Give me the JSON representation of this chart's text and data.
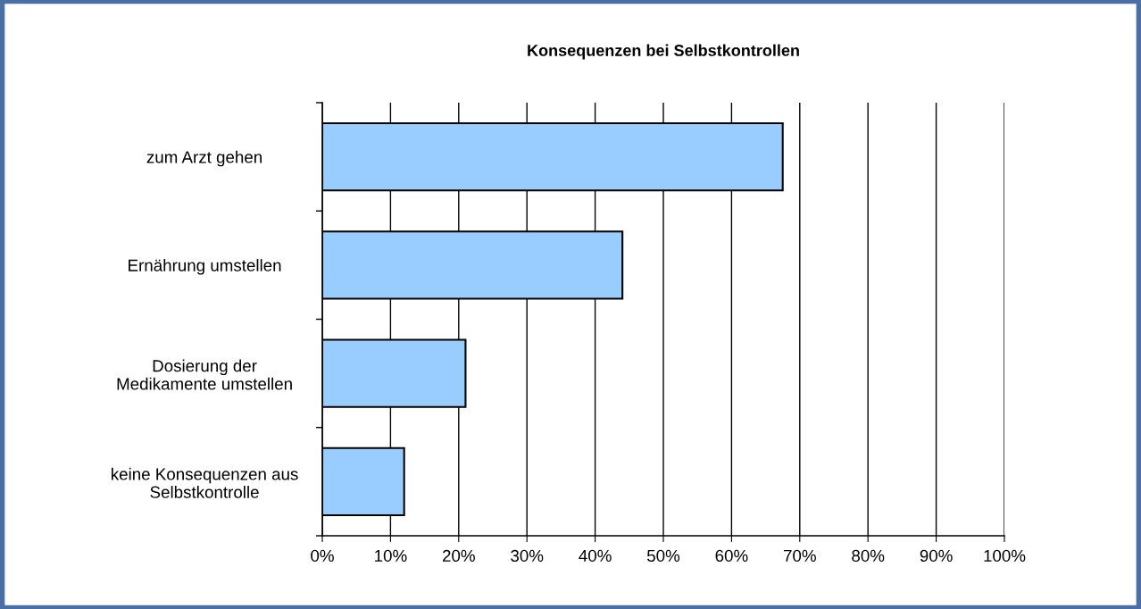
{
  "chart_data": {
    "type": "bar",
    "orientation": "horizontal",
    "title": "Konsequenzen bei Selbstkontrollen",
    "categories": [
      "zum Arzt gehen",
      "Ernährung umstellen",
      "Dosierung der\nMedikamente umstellen",
      "keine Konsequenzen aus\nSelbstkontrolle"
    ],
    "values": [
      67.5,
      44,
      21,
      12
    ],
    "color": "#99ccff",
    "xlim": [
      0,
      100
    ],
    "xticks": [
      {
        "value": 0,
        "label": "0%"
      },
      {
        "value": 10,
        "label": "10%"
      },
      {
        "value": 20,
        "label": "20%"
      },
      {
        "value": 30,
        "label": "30%"
      },
      {
        "value": 40,
        "label": "40%"
      },
      {
        "value": 50,
        "label": "50%"
      },
      {
        "value": 60,
        "label": "60%"
      },
      {
        "value": 70,
        "label": "70%"
      },
      {
        "value": 80,
        "label": "80%"
      },
      {
        "value": 90,
        "label": "90%"
      },
      {
        "value": 100,
        "label": "100%"
      }
    ],
    "grid": "x",
    "legend": false
  }
}
